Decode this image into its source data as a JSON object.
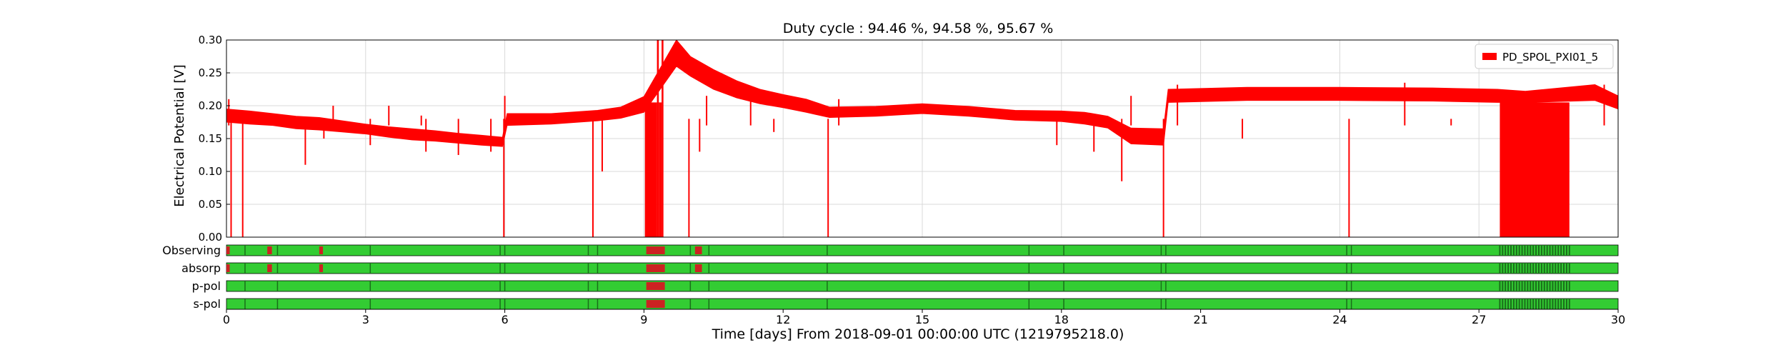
{
  "chart_data": {
    "type": "line",
    "title": "Duty cycle : 94.46 %, 94.58 %, 95.67 %",
    "xlabel": "Time [days] From 2018-09-01 00:00:00 UTC (1219795218.0)",
    "ylabel": "Electrical Potential [V]",
    "xlim": [
      0,
      30
    ],
    "ylim": [
      0,
      0.3
    ],
    "xticks": [
      0,
      3,
      6,
      9,
      12,
      15,
      18,
      21,
      24,
      27,
      30
    ],
    "xtick_labels": [
      "0",
      "3",
      "6",
      "9",
      "12",
      "15",
      "18",
      "21",
      "24",
      "27",
      "30"
    ],
    "yticks": [
      0.0,
      0.05,
      0.1,
      0.15,
      0.2,
      0.25,
      0.3
    ],
    "ytick_labels": [
      "0.00",
      "0.05",
      "0.10",
      "0.15",
      "0.20",
      "0.25",
      "0.30"
    ],
    "grid": true,
    "legend": {
      "position": "top-right",
      "entries": [
        "PD_SPOL_PXI01_5"
      ]
    },
    "series": [
      {
        "name": "PD_SPOL_PXI01_5",
        "color": "#ff0000",
        "band": [
          [
            0.0,
            0.175,
            0.195
          ],
          [
            0.5,
            0.172,
            0.192
          ],
          [
            1.0,
            0.17,
            0.188
          ],
          [
            1.5,
            0.165,
            0.184
          ],
          [
            2.0,
            0.163,
            0.182
          ],
          [
            2.5,
            0.16,
            0.177
          ],
          [
            3.0,
            0.157,
            0.172
          ],
          [
            3.5,
            0.152,
            0.168
          ],
          [
            4.0,
            0.148,
            0.165
          ],
          [
            4.5,
            0.146,
            0.162
          ],
          [
            5.0,
            0.143,
            0.158
          ],
          [
            5.5,
            0.14,
            0.155
          ],
          [
            5.95,
            0.138,
            0.152
          ],
          [
            6.05,
            0.17,
            0.188
          ],
          [
            7.0,
            0.172,
            0.188
          ],
          [
            8.0,
            0.177,
            0.193
          ],
          [
            8.5,
            0.181,
            0.198
          ],
          [
            9.0,
            0.19,
            0.214
          ],
          [
            9.7,
            0.26,
            0.3
          ],
          [
            10.0,
            0.245,
            0.275
          ],
          [
            10.5,
            0.225,
            0.255
          ],
          [
            11.0,
            0.212,
            0.238
          ],
          [
            11.5,
            0.203,
            0.225
          ],
          [
            12.0,
            0.197,
            0.217
          ],
          [
            12.5,
            0.19,
            0.21
          ],
          [
            13.0,
            0.182,
            0.198
          ],
          [
            14.0,
            0.184,
            0.199
          ],
          [
            15.0,
            0.188,
            0.203
          ],
          [
            16.0,
            0.184,
            0.199
          ],
          [
            17.0,
            0.178,
            0.193
          ],
          [
            18.0,
            0.176,
            0.192
          ],
          [
            18.5,
            0.172,
            0.19
          ],
          [
            19.0,
            0.166,
            0.184
          ],
          [
            19.5,
            0.142,
            0.166
          ],
          [
            20.2,
            0.14,
            0.165
          ],
          [
            20.3,
            0.205,
            0.225
          ],
          [
            22.0,
            0.208,
            0.228
          ],
          [
            24.0,
            0.208,
            0.228
          ],
          [
            26.0,
            0.207,
            0.227
          ],
          [
            27.4,
            0.205,
            0.225
          ],
          [
            28.0,
            0.205,
            0.222
          ],
          [
            29.5,
            0.208,
            0.232
          ],
          [
            30.0,
            0.195,
            0.215
          ]
        ],
        "dips": [
          [
            0.1,
            0.0
          ],
          [
            0.35,
            0.0
          ],
          [
            1.7,
            0.11
          ],
          [
            2.1,
            0.15
          ],
          [
            3.1,
            0.14
          ],
          [
            4.3,
            0.13
          ],
          [
            5.0,
            0.125
          ],
          [
            5.7,
            0.13
          ],
          [
            5.98,
            0.0
          ],
          [
            7.9,
            0.0
          ],
          [
            8.1,
            0.1
          ],
          [
            9.97,
            0.0
          ],
          [
            10.2,
            0.13
          ],
          [
            11.8,
            0.16
          ],
          [
            12.97,
            0.0
          ],
          [
            17.9,
            0.14
          ],
          [
            18.7,
            0.13
          ],
          [
            19.3,
            0.085
          ],
          [
            20.2,
            0.0
          ],
          [
            21.9,
            0.15
          ],
          [
            24.2,
            0.0
          ],
          [
            26.4,
            0.17
          ],
          [
            28.1,
            0.0
          ],
          [
            28.3,
            0.0
          ],
          [
            28.6,
            0.0
          ],
          [
            28.9,
            0.0
          ]
        ],
        "spikes": [
          [
            0.05,
            0.21
          ],
          [
            2.3,
            0.2
          ],
          [
            3.5,
            0.2
          ],
          [
            4.2,
            0.185
          ],
          [
            6.0,
            0.215
          ],
          [
            10.35,
            0.215
          ],
          [
            11.3,
            0.225
          ],
          [
            13.2,
            0.21
          ],
          [
            19.5,
            0.215
          ],
          [
            20.5,
            0.232
          ],
          [
            25.4,
            0.235
          ],
          [
            29.7,
            0.232
          ]
        ],
        "zero_blocks": [
          [
            9.02,
            9.28
          ],
          [
            9.32,
            9.38
          ],
          [
            27.45,
            28.95
          ]
        ],
        "full_blocks": [
          [
            9.28,
            9.32
          ],
          [
            9.38,
            9.42
          ]
        ]
      }
    ],
    "state_segments": {
      "track_labels": [
        "Observing",
        "absorp",
        "p-pol",
        "s-pol"
      ],
      "colors": {
        "active": "#33cc33",
        "inactive": "#cc2222",
        "edge": "#1a6e1a"
      },
      "inactive_intervals": {
        "Observing": [
          [
            0.0,
            0.07
          ],
          [
            0.88,
            0.98
          ],
          [
            2.0,
            2.08
          ],
          [
            9.05,
            9.45
          ],
          [
            10.1,
            10.25
          ]
        ],
        "absorp": [
          [
            0.0,
            0.07
          ],
          [
            0.88,
            0.98
          ],
          [
            2.0,
            2.08
          ],
          [
            9.05,
            9.45
          ],
          [
            10.1,
            10.25
          ]
        ],
        "p-pol": [
          [
            9.05,
            9.45
          ]
        ],
        "s-pol": [
          [
            9.05,
            9.45
          ]
        ]
      },
      "edge_marks": [
        0.4,
        1.1,
        3.1,
        5.9,
        6.0,
        7.8,
        8.0,
        10.0,
        10.4,
        12.95,
        17.3,
        18.05,
        20.15,
        20.25,
        24.15,
        24.25
      ],
      "dense_region": [
        27.45,
        29.0
      ]
    }
  }
}
